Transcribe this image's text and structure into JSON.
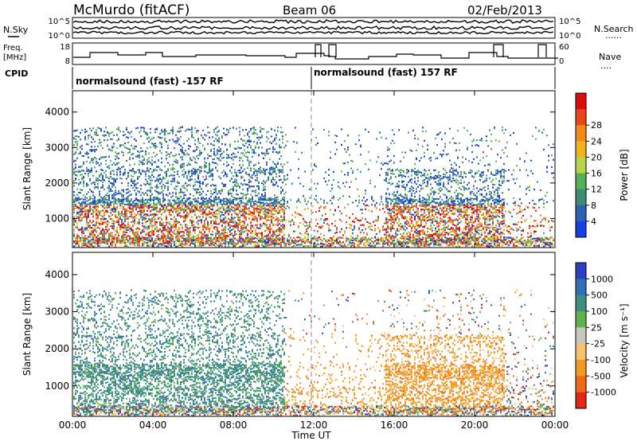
{
  "header": {
    "station": "McMurdo (fitACF)",
    "beam": "Beam 06",
    "date": "02/Feb/2013"
  },
  "summary": {
    "left_labels": {
      "nsky": "N.Sky",
      "freq_line1": "Freq.",
      "freq_line2": "[MHz]",
      "cpid": "CPID"
    },
    "right_labels": {
      "nsearch": "N.Search",
      "nave": "Nave"
    },
    "noise_ticks": [
      "10^5",
      "10^0"
    ],
    "freq_ticks": [
      "18",
      "8"
    ],
    "nave_ticks": [
      "60",
      "0"
    ],
    "cpid_segments": [
      {
        "text": "normalsound (fast) -157 RF",
        "start_hour": 0
      },
      {
        "text": "normalsound (fast) 157 RF",
        "start_hour": 12
      }
    ]
  },
  "colors": {
    "power_scale": [
      "#1a3fe0",
      "#2f5fb0",
      "#3e8c73",
      "#56b05a",
      "#b8d44a",
      "#f1b51c",
      "#f08a16",
      "#e8461a",
      "#d90d0d"
    ],
    "velocity_scale": [
      "#2c3ec2",
      "#2f6fb5",
      "#3e8f7c",
      "#63b24b",
      "#c8c8c0",
      "#f5c26e",
      "#f29a24",
      "#ee6a18",
      "#e22a12"
    ]
  },
  "chart_data": [
    {
      "type": "heatmap",
      "name": "Power",
      "ylabel": "Slant Range [km]",
      "xlabel": "Time UT",
      "x_ticks": [
        "00:00",
        "04:00",
        "08:00",
        "12:00",
        "16:00",
        "20:00",
        "00:00"
      ],
      "x_tick_hours": [
        0,
        4,
        8,
        12,
        16,
        20,
        24
      ],
      "y_ticks": [
        1000,
        2000,
        3000,
        4000
      ],
      "ylim": [
        180,
        4600
      ],
      "xlim": [
        0,
        24
      ],
      "colorbar_label": "Power [dB]",
      "colorbar_ticks": [
        "4",
        "8",
        "12",
        "16",
        "20",
        "24",
        "28"
      ]
    },
    {
      "type": "heatmap",
      "name": "Velocity",
      "ylabel": "Slant Range [km]",
      "xlabel": "Time UT",
      "x_ticks": [
        "00:00",
        "04:00",
        "08:00",
        "12:00",
        "16:00",
        "20:00",
        "00:00"
      ],
      "x_tick_hours": [
        0,
        4,
        8,
        12,
        16,
        20,
        24
      ],
      "y_ticks": [
        1000,
        2000,
        3000,
        4000
      ],
      "ylim": [
        180,
        4600
      ],
      "xlim": [
        0,
        24
      ],
      "colorbar_label": "Velocity [m s⁻¹]",
      "colorbar_ticks": [
        "1000",
        "500",
        "100",
        "25",
        "-25",
        "-100",
        "-500",
        "-1000"
      ]
    }
  ]
}
